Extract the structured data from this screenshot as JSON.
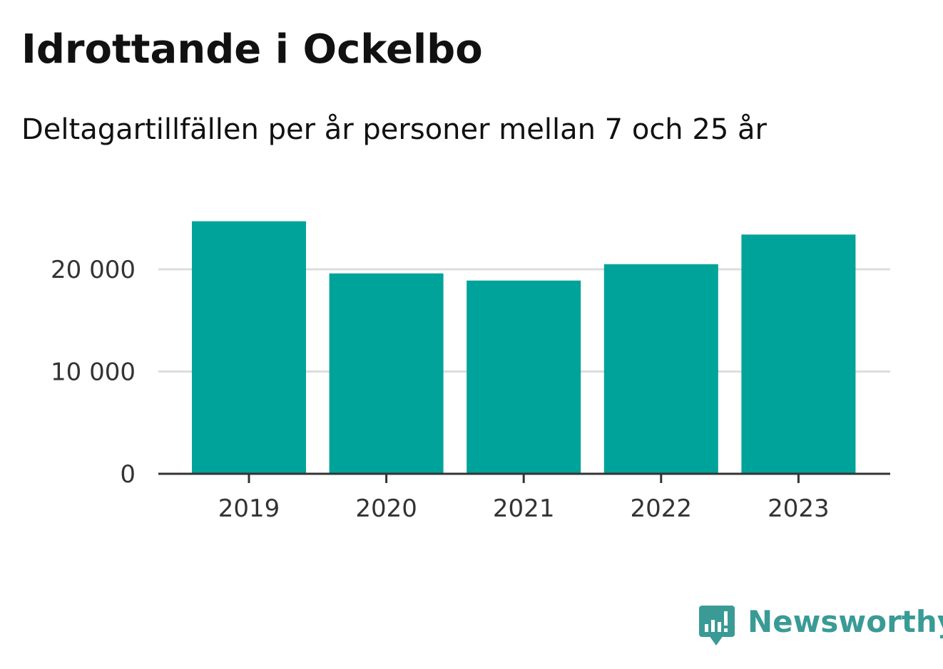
{
  "title": "Idrottande i Ockelbo",
  "subtitle": "Deltagartillfällen per år personer mellan 7 och 25 år",
  "brand": {
    "name": "Newsworthy",
    "icon": "newsworthy-logo-icon",
    "color": "#3a9a96"
  },
  "chart_data": {
    "type": "bar",
    "categories": [
      "2019",
      "2020",
      "2021",
      "2022",
      "2023"
    ],
    "values": [
      24700,
      19600,
      18900,
      20500,
      23400
    ],
    "ylim": [
      0,
      25000
    ],
    "yticks": [
      0,
      10000,
      20000
    ],
    "ytick_labels": [
      "0",
      "10 000",
      "20 000"
    ],
    "xlabel": "",
    "ylabel": "",
    "grid": "horizontal",
    "bar_color": "#00a39a",
    "grid_color": "#dddddd",
    "axis_color": "#333333"
  }
}
